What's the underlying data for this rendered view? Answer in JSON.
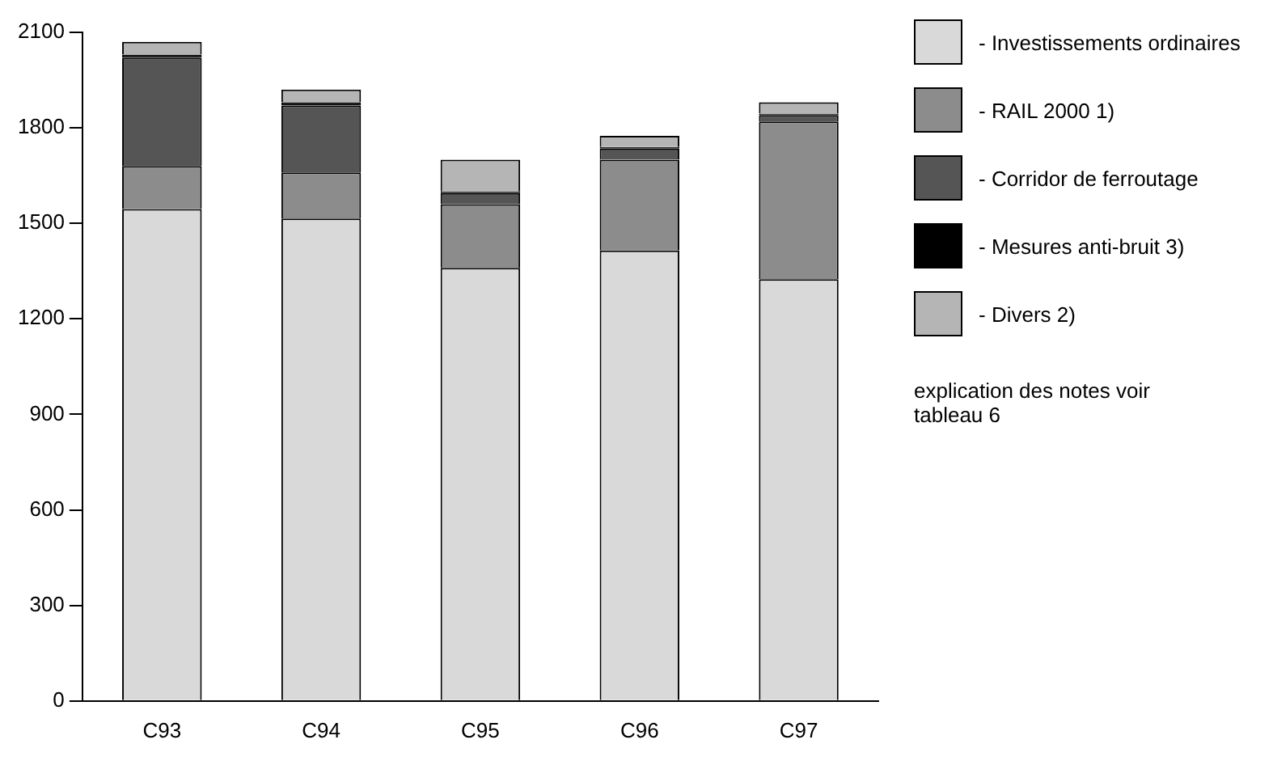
{
  "chart_data": {
    "type": "bar",
    "stacked": true,
    "categories": [
      "C93",
      "C94",
      "C95",
      "C96",
      "C97"
    ],
    "series": [
      {
        "name": "- Investissements ordinaires",
        "color": "#d9d9d9",
        "values": [
          1545,
          1515,
          1360,
          1415,
          1325
        ]
      },
      {
        "name": "- RAIL 2000 1)",
        "color": "#8c8c8c",
        "values": [
          135,
          145,
          200,
          285,
          495
        ]
      },
      {
        "name": "- Corridor de ferroutage",
        "color": "#555555",
        "values": [
          340,
          210,
          35,
          35,
          20
        ]
      },
      {
        "name": "- Mesures anti-bruit 3)",
        "color": "#000000",
        "values": [
          10,
          10,
          5,
          5,
          5
        ]
      },
      {
        "name": "- Divers 2)",
        "color": "#b5b5b5",
        "values": [
          40,
          40,
          100,
          35,
          35
        ]
      }
    ],
    "ylim": [
      0,
      2100
    ],
    "yticks": [
      0,
      300,
      600,
      900,
      1200,
      1500,
      1800,
      2100
    ],
    "grid": false,
    "legend": "right",
    "annotations": [
      "explication des notes voir tableau 6"
    ]
  }
}
